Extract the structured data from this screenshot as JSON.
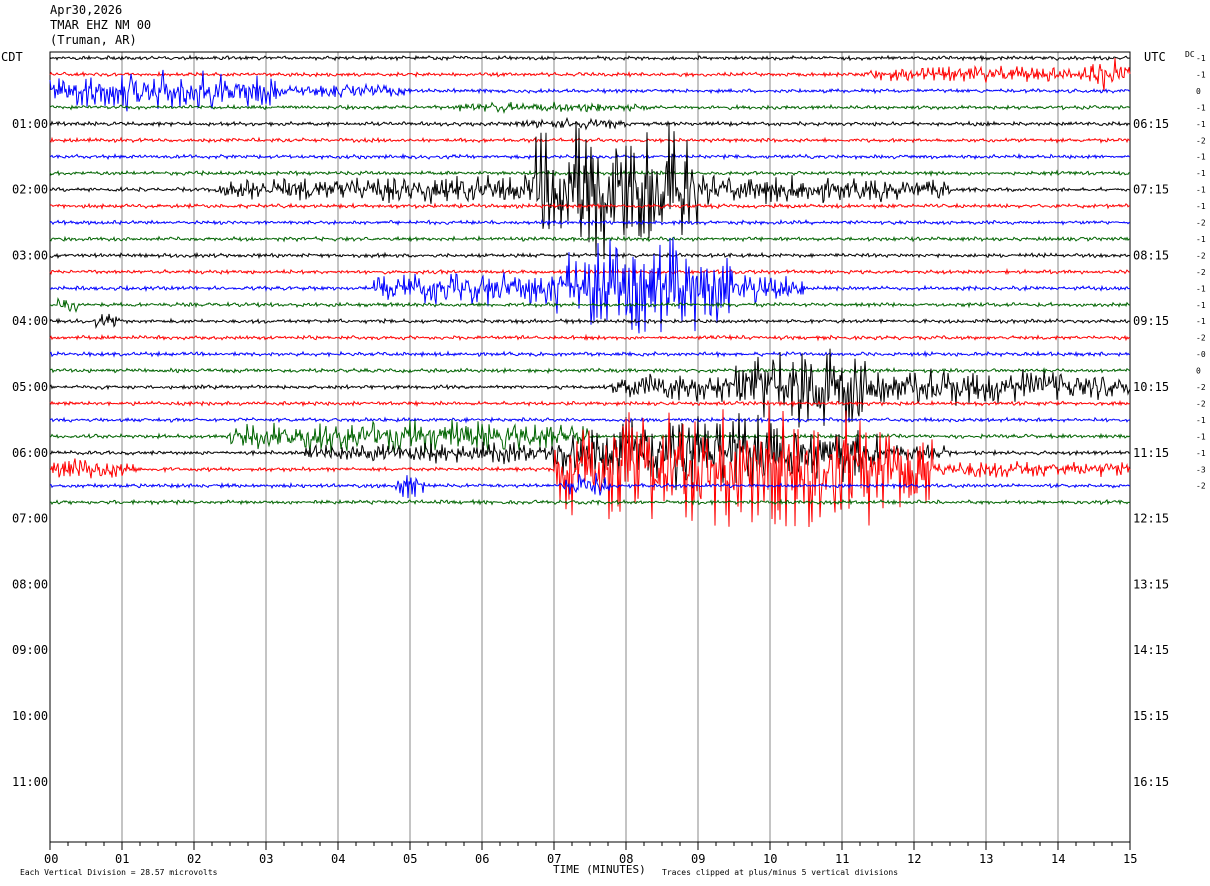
{
  "header": {
    "date": "Apr30,2026",
    "station": "TMAR EHZ NM 00",
    "location": "(Truman, AR)"
  },
  "left_tz": "CDT",
  "right_tz": "UTC",
  "dc_label": "DC",
  "chart_data": {
    "type": "line",
    "xlabel": "TIME (MINUTES)",
    "x_ticks": [
      "00",
      "01",
      "02",
      "03",
      "04",
      "05",
      "06",
      "07",
      "08",
      "09",
      "10",
      "11",
      "12",
      "13",
      "14",
      "15"
    ],
    "xlim": [
      0,
      15
    ],
    "row_count": 48,
    "rows_per_hour": 4,
    "trace_count": 28,
    "colors": [
      "#000000",
      "#ff0000",
      "#0000ff",
      "#006400"
    ],
    "left_hours": [
      "01:00",
      "02:00",
      "03:00",
      "04:00",
      "05:00",
      "06:00",
      "07:00",
      "08:00",
      "09:00",
      "10:00",
      "11:00"
    ],
    "right_hours": [
      "06:15",
      "07:15",
      "08:15",
      "09:15",
      "10:15",
      "11:15",
      "12:15",
      "13:15",
      "14:15",
      "15:15",
      "16:15"
    ],
    "dc_offsets": [
      "-1",
      "-1",
      "0",
      "-1",
      "-1",
      "-2",
      "-1",
      "-1",
      "-1",
      "-1",
      "-2",
      "-1",
      "-2",
      "-2",
      "-1",
      "-1",
      "-1",
      "-2",
      "-0",
      "0",
      "-2",
      "-2",
      "-1",
      "-1",
      "-1",
      "-3",
      "-2"
    ],
    "events": [
      {
        "row": 1,
        "start": 11.3,
        "end": 15,
        "amp": 9,
        "freq": 1.2
      },
      {
        "row": 1,
        "start": 14.4,
        "end": 15,
        "amp": 22,
        "freq": 1.8
      },
      {
        "row": 2,
        "start": 0,
        "end": 3.2,
        "amp": 22,
        "freq": 1.4
      },
      {
        "row": 2,
        "start": 3.2,
        "end": 5.0,
        "amp": 7,
        "freq": 1.0
      },
      {
        "row": 3,
        "start": 5.6,
        "end": 8.4,
        "amp": 6,
        "freq": 1.0
      },
      {
        "row": 4,
        "start": 6.5,
        "end": 8.0,
        "amp": 6,
        "freq": 1.3
      },
      {
        "row": 8,
        "start": 2.3,
        "end": 12.5,
        "amp": 16,
        "freq": 1.2
      },
      {
        "row": 8,
        "start": 6.7,
        "end": 9.0,
        "amp": 80,
        "freq": 2.5
      },
      {
        "row": 14,
        "start": 4.5,
        "end": 10.5,
        "amp": 20,
        "freq": 1.2
      },
      {
        "row": 14,
        "start": 7.0,
        "end": 9.5,
        "amp": 55,
        "freq": 2.0
      },
      {
        "row": 15,
        "start": 0.1,
        "end": 0.4,
        "amp": 12,
        "freq": 1.0
      },
      {
        "row": 16,
        "start": 0.6,
        "end": 1.0,
        "amp": 8,
        "freq": 1.0
      },
      {
        "row": 20,
        "start": 7.8,
        "end": 15,
        "amp": 20,
        "freq": 1.5
      },
      {
        "row": 20,
        "start": 9.5,
        "end": 11.6,
        "amp": 45,
        "freq": 2.0
      },
      {
        "row": 23,
        "start": 2.5,
        "end": 7.5,
        "amp": 18,
        "freq": 1.2
      },
      {
        "row": 24,
        "start": 3.5,
        "end": 12.5,
        "amp": 12,
        "freq": 1.2
      },
      {
        "row": 24,
        "start": 7.0,
        "end": 11.5,
        "amp": 40,
        "freq": 2.0
      },
      {
        "row": 25,
        "start": 0,
        "end": 1.2,
        "amp": 12,
        "freq": 1.2
      },
      {
        "row": 25,
        "start": 7.0,
        "end": 12.3,
        "amp": 65,
        "freq": 2.2
      },
      {
        "row": 25,
        "start": 12.3,
        "end": 15,
        "amp": 10,
        "freq": 1.2
      },
      {
        "row": 26,
        "start": 4.8,
        "end": 5.2,
        "amp": 18,
        "freq": 1.5
      },
      {
        "row": 26,
        "start": 7.1,
        "end": 7.8,
        "amp": 14,
        "freq": 1.5
      }
    ]
  },
  "footer": {
    "left_note": "Each Vertical Division = 28.57 microvolts",
    "right_note": "Traces clipped at plus/minus 5 vertical divisions"
  }
}
